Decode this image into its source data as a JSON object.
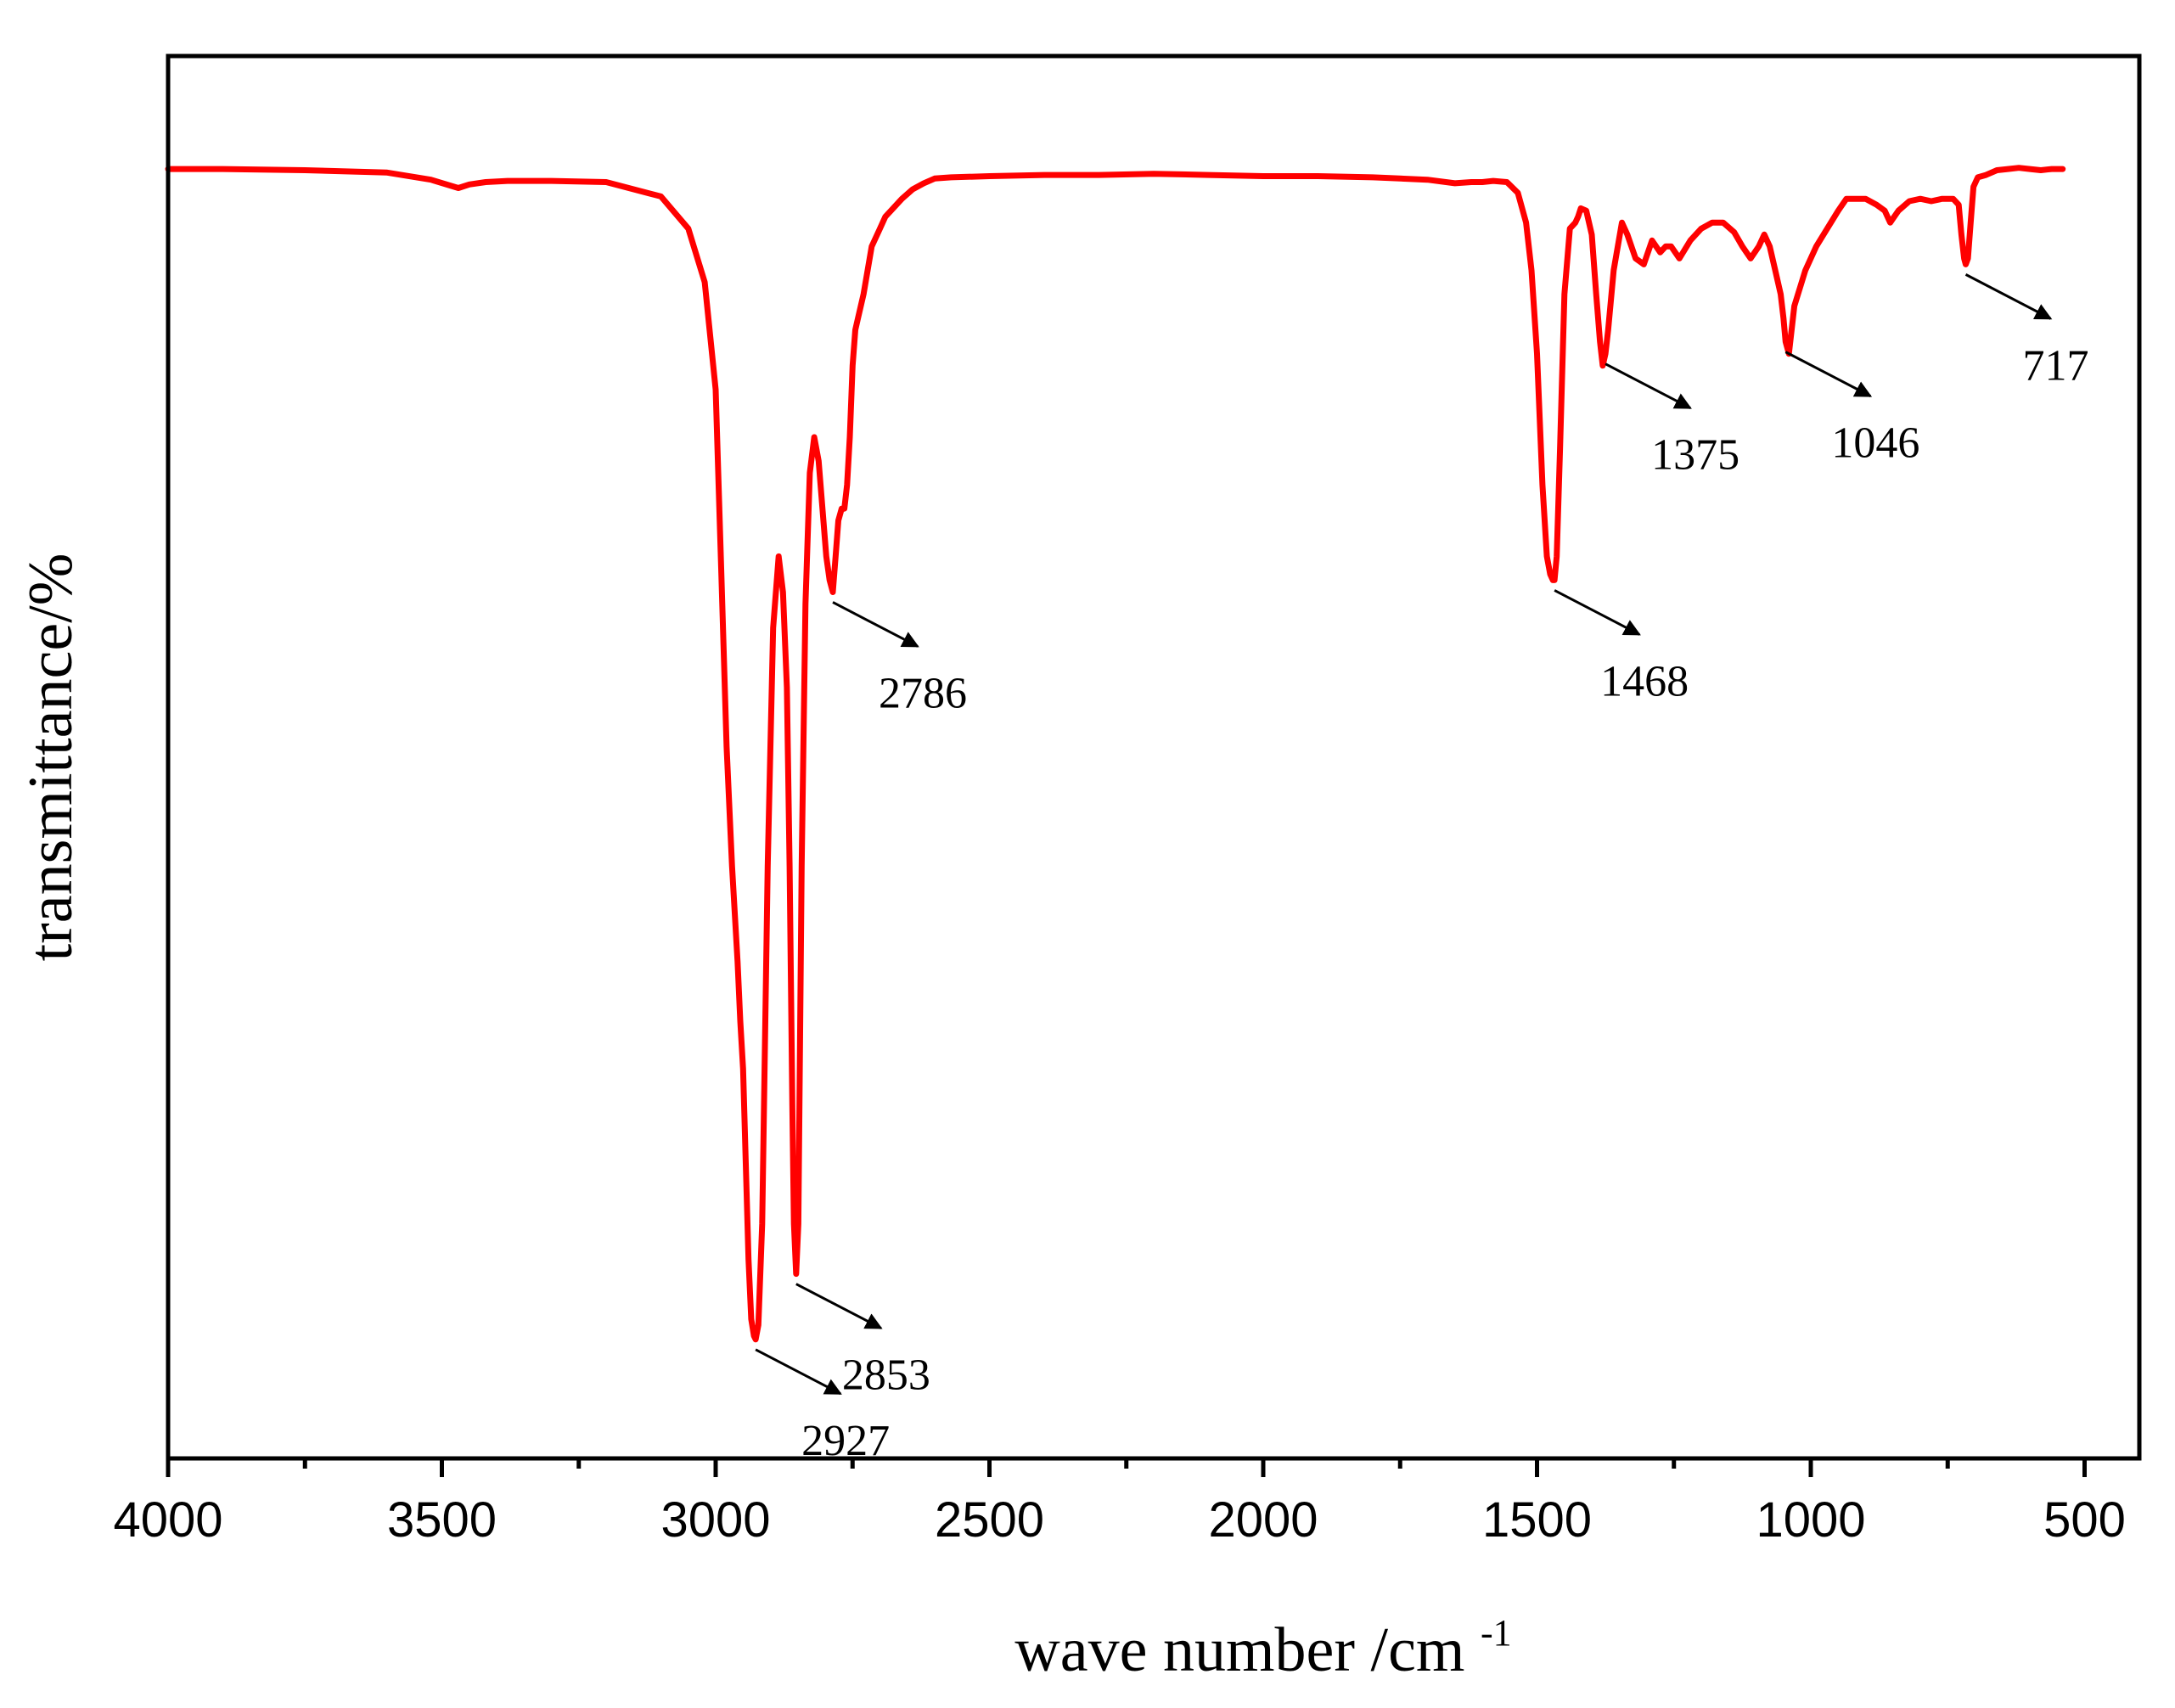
{
  "chart_data": {
    "type": "line",
    "title": "",
    "xlabel": "wave number /cm",
    "xlabel_superscript": "-1",
    "ylabel": "transmittance/%",
    "xlim": [
      4000,
      400
    ],
    "x_reversed": true,
    "ylim": [
      0,
      100
    ],
    "y_tick_labels_shown": false,
    "grid": false,
    "x_ticks": [
      4000,
      3500,
      3000,
      2500,
      2000,
      1500,
      1000,
      500
    ],
    "x_tick_labels": [
      "4000",
      "3500",
      "3000",
      "2500",
      "2000",
      "1500",
      "1000",
      "500"
    ],
    "x_minor_ticks": [
      3750,
      3250,
      2750,
      2250,
      1750,
      1250,
      750
    ],
    "series": [
      {
        "name": "spectrum",
        "color": "#ff0000",
        "x": [
          4000,
          3900,
          3750,
          3600,
          3520,
          3470,
          3450,
          3420,
          3380,
          3300,
          3200,
          3100,
          3050,
          3020,
          3000,
          2990,
          2980,
          2970,
          2960,
          2955,
          2950,
          2945,
          2940,
          2935,
          2930,
          2927,
          2922,
          2915,
          2905,
          2895,
          2885,
          2877,
          2870,
          2865,
          2860,
          2857,
          2853,
          2849,
          2843,
          2836,
          2828,
          2820,
          2812,
          2805,
          2798,
          2792,
          2786,
          2781,
          2776,
          2770,
          2765,
          2760,
          2755,
          2750,
          2745,
          2740,
          2730,
          2715,
          2700,
          2690,
          2680,
          2660,
          2640,
          2620,
          2600,
          2570,
          2500,
          2400,
          2300,
          2200,
          2100,
          2000,
          1900,
          1800,
          1700,
          1650,
          1620,
          1600,
          1580,
          1555,
          1535,
          1520,
          1510,
          1500,
          1490,
          1482,
          1476,
          1471,
          1468,
          1464,
          1458,
          1450,
          1440,
          1430,
          1425,
          1420,
          1410,
          1400,
          1392,
          1385,
          1380,
          1375,
          1370,
          1360,
          1345,
          1335,
          1320,
          1305,
          1290,
          1275,
          1265,
          1255,
          1240,
          1220,
          1200,
          1180,
          1160,
          1140,
          1125,
          1110,
          1095,
          1085,
          1075,
          1065,
          1055,
          1050,
          1046,
          1040,
          1030,
          1010,
          990,
          970,
          950,
          935,
          900,
          880,
          865,
          855,
          840,
          820,
          800,
          780,
          760,
          740,
          730,
          725,
          720,
          717,
          713,
          708,
          703,
          695,
          680,
          660,
          640,
          620,
          600,
          580,
          560,
          540
        ],
        "y": [
          98.5,
          98.5,
          98.4,
          98.2,
          97.6,
          96.9,
          97.2,
          97.4,
          97.5,
          97.5,
          97.4,
          96.2,
          93.5,
          89,
          80,
          65,
          50,
          40,
          32,
          27,
          23,
          15,
          7,
          2,
          0.6,
          0.3,
          1.5,
          10,
          40,
          60,
          66,
          63,
          55,
          40,
          20,
          10,
          5.8,
          10,
          40,
          62,
          73,
          76,
          74,
          70,
          66,
          64,
          63,
          66,
          69,
          70,
          70,
          72,
          76,
          82,
          85,
          86,
          88,
          92,
          93.5,
          94.5,
          95,
          96,
          96.8,
          97.3,
          97.7,
          97.8,
          97.9,
          98,
          98,
          98.1,
          98,
          97.9,
          97.9,
          97.8,
          97.6,
          97.3,
          97.4,
          97.4,
          97.5,
          97.4,
          96.5,
          94,
          90,
          83,
          72,
          66,
          64.5,
          64,
          64,
          66,
          75,
          88,
          93.5,
          94,
          94.5,
          95.2,
          95,
          93,
          88,
          84,
          82,
          83,
          85,
          90,
          94,
          93,
          91,
          90.5,
          92.5,
          91.5,
          92,
          92,
          91,
          92.5,
          93.5,
          94,
          94,
          93.2,
          92,
          91,
          92,
          93,
          92,
          90,
          88,
          86,
          84,
          83,
          87,
          90,
          92,
          93.5,
          95,
          96,
          96,
          95.5,
          95,
          94,
          95,
          95.8,
          96,
          95.8,
          96,
          96,
          95.5,
          93,
          91,
          90.5,
          91,
          94,
          97,
          97.8,
          98,
          98.4,
          98.5,
          98.6,
          98.5,
          98.4,
          98.5,
          98.5
        ]
      }
    ],
    "annotations": [
      {
        "label": "2927",
        "x": 2927
      },
      {
        "label": "2853",
        "x": 2853
      },
      {
        "label": "2786",
        "x": 2786
      },
      {
        "label": "1468",
        "x": 1468
      },
      {
        "label": "1375",
        "x": 1375
      },
      {
        "label": "1046",
        "x": 1046
      },
      {
        "label": "717",
        "x": 717
      }
    ]
  }
}
